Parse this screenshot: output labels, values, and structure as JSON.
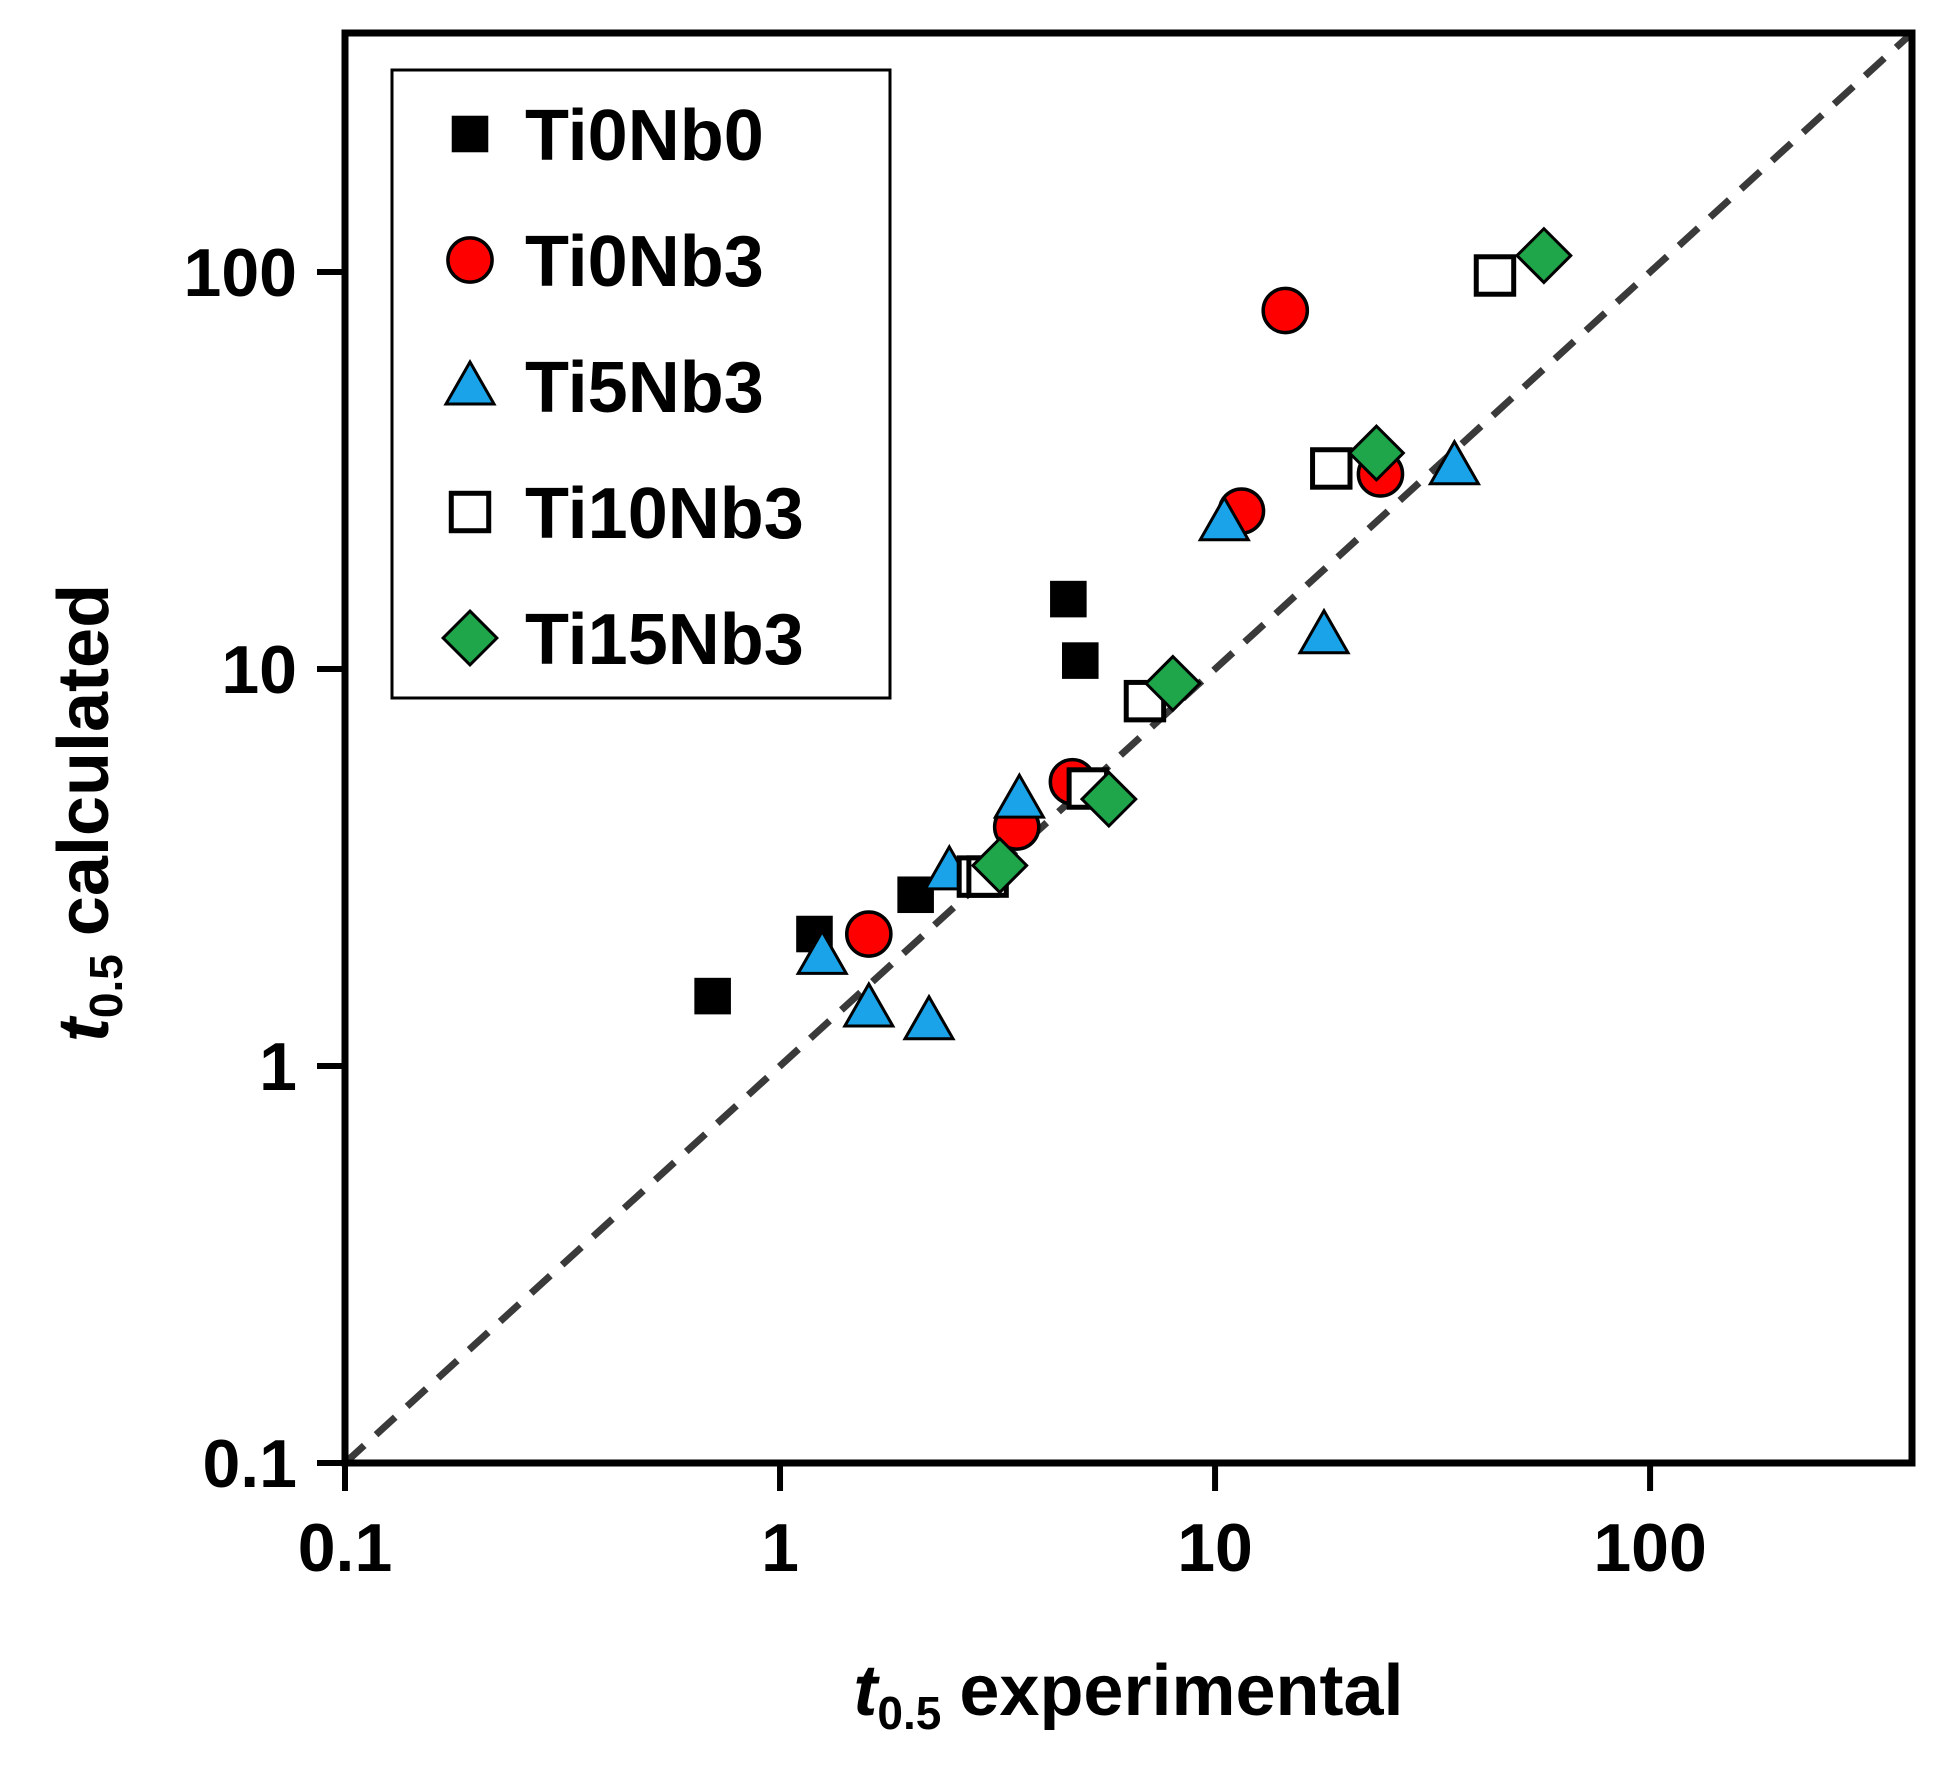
{
  "chart_data": {
    "type": "scatter",
    "title": "",
    "xlabel": {
      "var": "t",
      "sub": "0.5",
      "rest": "experimental"
    },
    "ylabel": {
      "var": "t",
      "sub": "0.5",
      "rest": "calculated"
    },
    "xscale": "log",
    "yscale": "log",
    "xlim": [
      0.1,
      400
    ],
    "ylim": [
      0.1,
      400
    ],
    "x_ticks": [
      0.1,
      1,
      10,
      100
    ],
    "x_tick_labels": [
      "0.1",
      "1",
      "10",
      "100"
    ],
    "y_ticks": [
      0.1,
      1,
      10,
      100
    ],
    "y_tick_labels": [
      "0.1",
      "1",
      "10",
      "100"
    ],
    "grid": false,
    "legend_position": "top-left",
    "reference_line": {
      "style": "dashed",
      "color": "#3a3a3a",
      "from": [
        0.1,
        0.1
      ],
      "to": [
        400,
        400
      ]
    },
    "series": [
      {
        "name": "Ti0Nb0",
        "marker": "square",
        "fill": "#000000",
        "points": [
          [
            0.7,
            1.5
          ],
          [
            1.2,
            2.15
          ],
          [
            2.05,
            2.7
          ],
          [
            4.6,
            15
          ],
          [
            4.9,
            10.5
          ]
        ]
      },
      {
        "name": "Ti0Nb3",
        "marker": "circle",
        "fill": "#ff0000",
        "points": [
          [
            1.6,
            2.15
          ],
          [
            3.5,
            4.0
          ],
          [
            4.7,
            5.2
          ],
          [
            11.5,
            25
          ],
          [
            14.5,
            80
          ],
          [
            24,
            31
          ]
        ]
      },
      {
        "name": "Ti5Nb3",
        "marker": "triangle",
        "fill": "#1aa3e8",
        "points": [
          [
            1.25,
            1.9
          ],
          [
            1.6,
            1.4
          ],
          [
            2.2,
            1.3
          ],
          [
            2.45,
            3.1
          ],
          [
            3.55,
            4.7
          ],
          [
            10.5,
            23.5
          ],
          [
            17.8,
            12.2
          ],
          [
            35.5,
            32.5
          ]
        ]
      },
      {
        "name": "Ti10Nb3",
        "marker": "open-square",
        "fill": "#ffffff",
        "points": [
          [
            2.85,
            3.0
          ],
          [
            3.0,
            3.0
          ],
          [
            5.1,
            5.0
          ],
          [
            6.9,
            8.3
          ],
          [
            18.5,
            32
          ],
          [
            44,
            98
          ]
        ]
      },
      {
        "name": "Ti15Nb3",
        "marker": "diamond",
        "fill": "#1fa64a",
        "points": [
          [
            3.2,
            3.2
          ],
          [
            5.7,
            4.7
          ],
          [
            8.0,
            9.2
          ],
          [
            23.5,
            35
          ],
          [
            57,
            110
          ]
        ]
      }
    ]
  }
}
